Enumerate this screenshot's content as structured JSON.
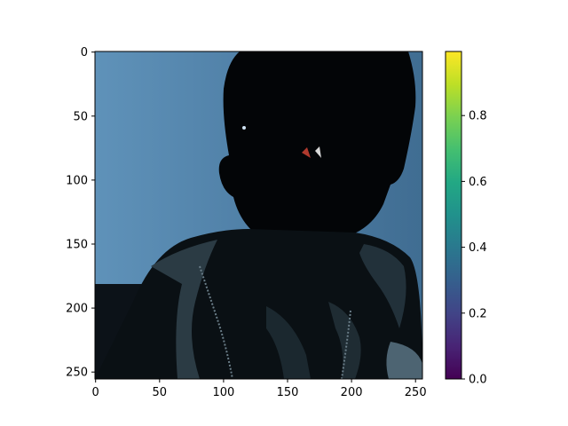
{
  "image": {
    "subject": "photo of a child with a dark face silhouette and zippered jacket against a blue wall",
    "background_color": "#5e8fb5",
    "dark_color": "#040608"
  },
  "x_axis": {
    "ticks": [
      "0",
      "50",
      "100",
      "150",
      "200",
      "250"
    ]
  },
  "y_axis": {
    "ticks": [
      "0",
      "50",
      "100",
      "150",
      "200",
      "250"
    ]
  },
  "colorbar": {
    "colormap": "viridis",
    "ticks": [
      "0.0",
      "0.2",
      "0.4",
      "0.6",
      "0.8"
    ]
  }
}
